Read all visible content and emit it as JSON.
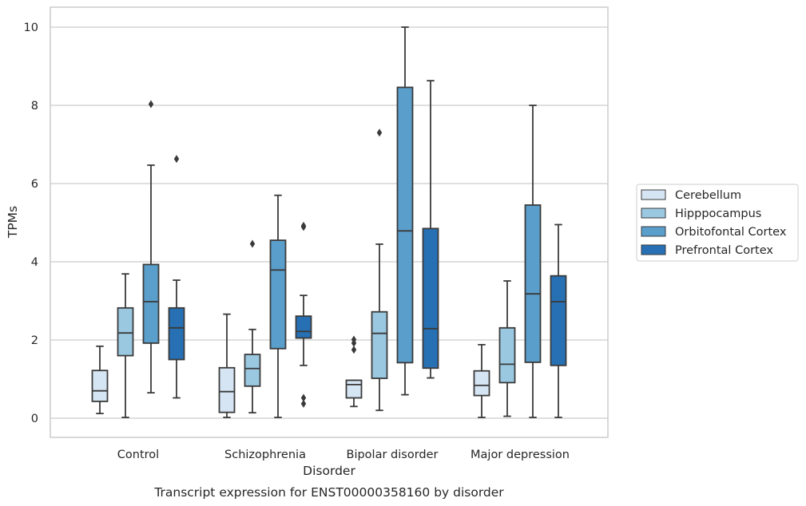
{
  "chart_data": {
    "type": "box",
    "xlabel": "Disorder",
    "ylabel": "TPMs",
    "caption": "Transcript expression for ENST00000358160 by disorder",
    "ylim": [
      -0.5,
      10.5
    ],
    "yticks": [
      0,
      2,
      4,
      6,
      8,
      10
    ],
    "grid": "horizontal",
    "legend_position": "right-outside",
    "categories": [
      "Control",
      "Schizophrenia",
      "Bipolar disorder",
      "Major depression"
    ],
    "series": [
      {
        "name": "Cerebellum",
        "color": "#d6e5f3",
        "boxes": [
          {
            "whislo": 0.12,
            "q1": 0.43,
            "med": 0.7,
            "q3": 1.22,
            "whishi": 1.84,
            "fliers": []
          },
          {
            "whislo": 0.02,
            "q1": 0.15,
            "med": 0.68,
            "q3": 1.29,
            "whishi": 2.66,
            "fliers": []
          },
          {
            "whislo": 0.3,
            "q1": 0.52,
            "med": 0.86,
            "q3": 0.97,
            "whishi": 0.97,
            "fliers": [
              1.75,
              1.92,
              2.01
            ]
          },
          {
            "whislo": 0.02,
            "q1": 0.58,
            "med": 0.84,
            "q3": 1.21,
            "whishi": 1.88,
            "fliers": []
          }
        ]
      },
      {
        "name": "Hipppocampus",
        "color": "#9ac8e0",
        "boxes": [
          {
            "whislo": 0.02,
            "q1": 1.6,
            "med": 2.18,
            "q3": 2.82,
            "whishi": 3.69,
            "fliers": []
          },
          {
            "whislo": 0.14,
            "q1": 0.82,
            "med": 1.27,
            "q3": 1.63,
            "whishi": 2.27,
            "fliers": [
              4.46
            ]
          },
          {
            "whislo": 0.2,
            "q1": 1.02,
            "med": 2.17,
            "q3": 2.72,
            "whishi": 4.45,
            "fliers": [
              7.3
            ]
          },
          {
            "whislo": 0.05,
            "q1": 0.91,
            "med": 1.38,
            "q3": 2.31,
            "whishi": 3.51,
            "fliers": []
          }
        ]
      },
      {
        "name": "Orbitofontal Cortex",
        "color": "#5a9fcc",
        "boxes": [
          {
            "whislo": 0.65,
            "q1": 1.92,
            "med": 2.98,
            "q3": 3.93,
            "whishi": 6.47,
            "fliers": [
              8.03
            ]
          },
          {
            "whislo": 0.02,
            "q1": 1.78,
            "med": 3.79,
            "q3": 4.55,
            "whishi": 5.7,
            "fliers": []
          },
          {
            "whislo": 0.6,
            "q1": 1.42,
            "med": 4.79,
            "q3": 8.46,
            "whishi": 10.0,
            "fliers": []
          },
          {
            "whislo": 0.02,
            "q1": 1.43,
            "med": 3.18,
            "q3": 5.45,
            "whishi": 8.0,
            "fliers": []
          }
        ]
      },
      {
        "name": "Prefrontal Cortex",
        "color": "#2770b4",
        "boxes": [
          {
            "whislo": 0.52,
            "q1": 1.5,
            "med": 2.31,
            "q3": 2.82,
            "whishi": 3.53,
            "fliers": [
              6.63
            ]
          },
          {
            "whislo": 1.35,
            "q1": 2.05,
            "med": 2.22,
            "q3": 2.61,
            "whishi": 3.14,
            "fliers": [
              0.37,
              0.52,
              4.89,
              4.92
            ]
          },
          {
            "whislo": 1.03,
            "q1": 1.28,
            "med": 2.29,
            "q3": 4.85,
            "whishi": 8.63,
            "fliers": []
          },
          {
            "whislo": 0.02,
            "q1": 1.35,
            "med": 2.98,
            "q3": 3.64,
            "whishi": 4.95,
            "fliers": []
          }
        ]
      }
    ]
  }
}
